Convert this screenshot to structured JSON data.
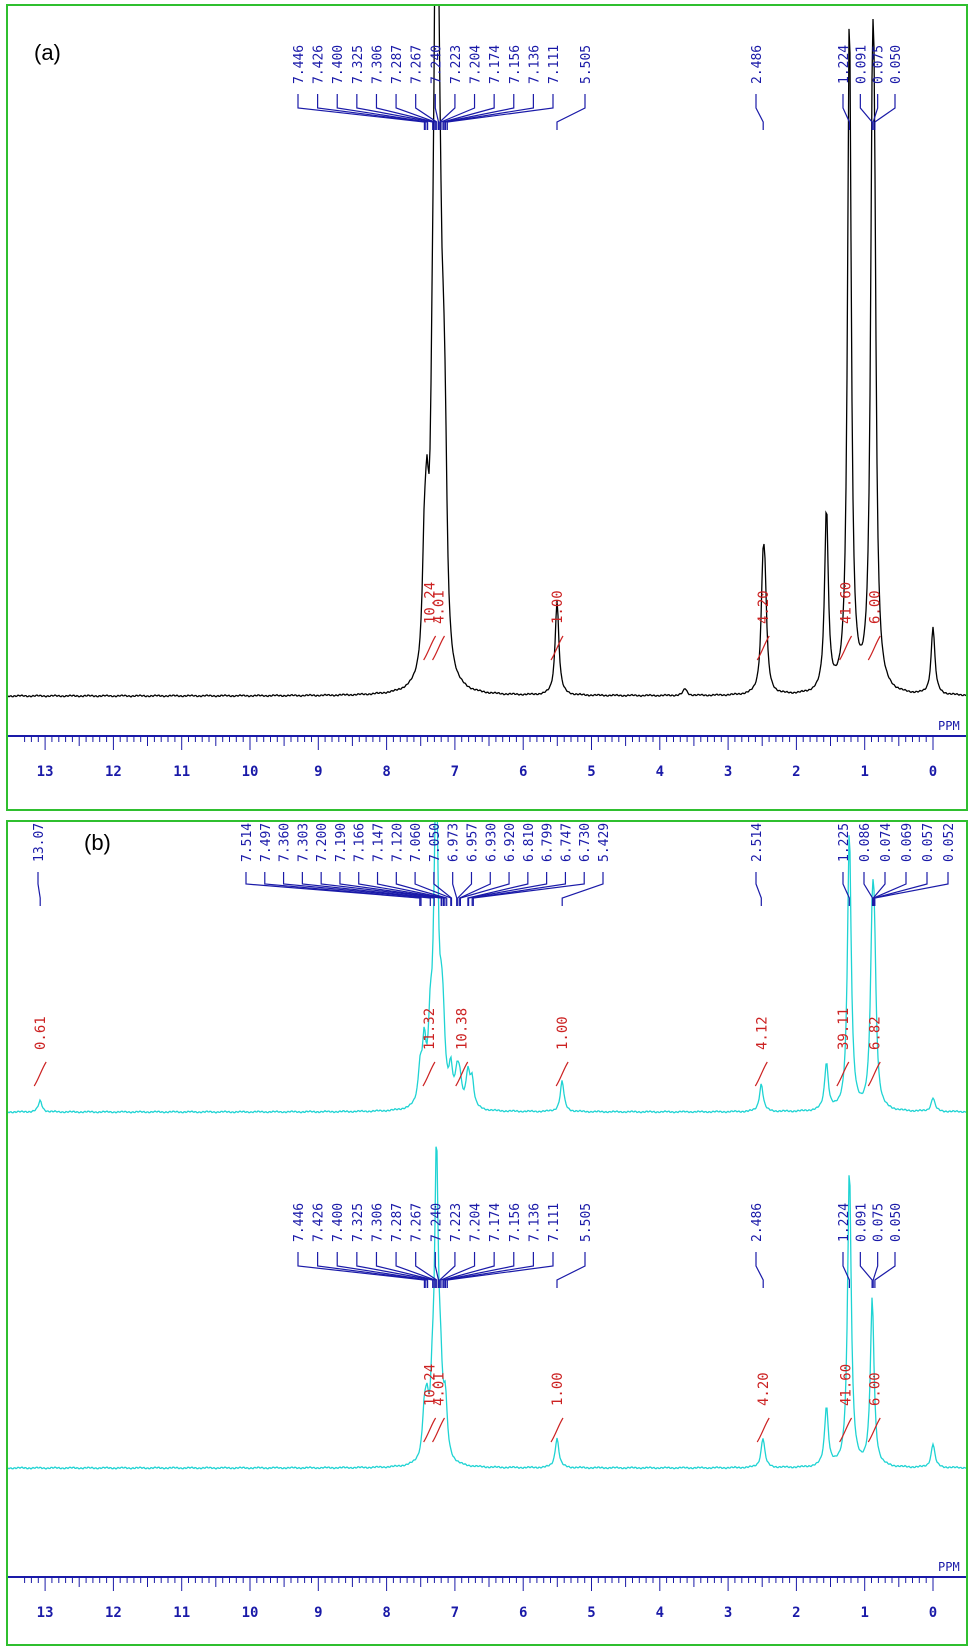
{
  "chart_data": [
    {
      "type": "line",
      "panel_label": "(a)",
      "x_unit": "PPM",
      "xlim": [
        13.3,
        0
      ],
      "x_ticks": [
        "13",
        "12",
        "11",
        "10",
        "9",
        "8",
        "7",
        "6",
        "5",
        "4",
        "3",
        "2",
        "1",
        "0"
      ],
      "series": [
        {
          "color": "#000000",
          "peaks": [
            {
              "x": 7.45,
              "h": 0.14
            },
            {
              "x": 7.41,
              "h": 0.18
            },
            {
              "x": 7.33,
              "h": 0.22
            },
            {
              "x": 7.3,
              "h": 0.2
            },
            {
              "x": 7.27,
              "h": 1.0
            },
            {
              "x": 7.24,
              "h": 0.3
            },
            {
              "x": 7.21,
              "h": 0.26
            },
            {
              "x": 7.17,
              "h": 0.22
            },
            {
              "x": 7.14,
              "h": 0.2
            },
            {
              "x": 5.505,
              "h": 0.14
            },
            {
              "x": 3.63,
              "h": 0.01
            },
            {
              "x": 2.49,
              "h": 0.15
            },
            {
              "x": 2.46,
              "h": 0.12
            },
            {
              "x": 1.56,
              "h": 0.27
            },
            {
              "x": 1.224,
              "h": 1.0
            },
            {
              "x": 0.89,
              "h": 0.62
            },
            {
              "x": 0.86,
              "h": 0.58
            },
            {
              "x": 0.0,
              "h": 0.1
            }
          ]
        }
      ],
      "peak_labels": [
        "7.446",
        "7.426",
        "7.400",
        "7.325",
        "7.306",
        "7.287",
        "7.267",
        "7.240",
        "7.223",
        "7.204",
        "7.174",
        "7.156",
        "7.136",
        "7.111",
        "5.505",
        "2.486",
        "1.224",
        "0.091",
        "0.075",
        "0.050"
      ],
      "integrals": [
        {
          "x": 7.37,
          "label": "10.24"
        },
        {
          "x": 7.24,
          "label": "4.01"
        },
        {
          "x": 5.505,
          "label": "1.00"
        },
        {
          "x": 2.486,
          "label": "4.20"
        },
        {
          "x": 1.28,
          "label": "41.60"
        },
        {
          "x": 0.86,
          "label": "6.00"
        }
      ]
    },
    {
      "type": "line",
      "panel_label": "(b)",
      "x_unit": "PPM",
      "xlim": [
        13.3,
        0
      ],
      "x_ticks": [
        "13",
        "12",
        "11",
        "10",
        "9",
        "8",
        "7",
        "6",
        "5",
        "4",
        "3",
        "2",
        "1",
        "0"
      ],
      "series": [
        {
          "color": "#1fd3d3",
          "peaks": [
            {
              "x": 13.072,
              "h": 0.04
            },
            {
              "x": 7.51,
              "h": 0.12
            },
            {
              "x": 7.45,
              "h": 0.2
            },
            {
              "x": 7.36,
              "h": 0.24
            },
            {
              "x": 7.3,
              "h": 0.27
            },
            {
              "x": 7.27,
              "h": 1.0
            },
            {
              "x": 7.2,
              "h": 0.22
            },
            {
              "x": 7.17,
              "h": 0.18
            },
            {
              "x": 7.06,
              "h": 0.12
            },
            {
              "x": 6.97,
              "h": 0.1
            },
            {
              "x": 6.93,
              "h": 0.09
            },
            {
              "x": 6.81,
              "h": 0.12
            },
            {
              "x": 6.75,
              "h": 0.1
            },
            {
              "x": 5.43,
              "h": 0.11
            },
            {
              "x": 2.514,
              "h": 0.1
            },
            {
              "x": 1.56,
              "h": 0.17
            },
            {
              "x": 1.225,
              "h": 1.0
            },
            {
              "x": 0.89,
              "h": 0.52
            },
            {
              "x": 0.86,
              "h": 0.48
            },
            {
              "x": 0.0,
              "h": 0.05
            }
          ]
        },
        {
          "color": "#1fd3d3",
          "peaks": [
            {
              "x": 7.45,
              "h": 0.13
            },
            {
              "x": 7.41,
              "h": 0.15
            },
            {
              "x": 7.33,
              "h": 0.18
            },
            {
              "x": 7.27,
              "h": 1.0
            },
            {
              "x": 7.21,
              "h": 0.22
            },
            {
              "x": 7.14,
              "h": 0.18
            },
            {
              "x": 5.505,
              "h": 0.1
            },
            {
              "x": 2.49,
              "h": 0.1
            },
            {
              "x": 1.56,
              "h": 0.2
            },
            {
              "x": 1.224,
              "h": 1.0
            },
            {
              "x": 0.89,
              "h": 0.56
            },
            {
              "x": 0.0,
              "h": 0.08
            }
          ]
        }
      ],
      "peak_labels_upper": [
        "13.072",
        "7.514",
        "7.497",
        "7.360",
        "7.303",
        "7.200",
        "7.190",
        "7.166",
        "7.147",
        "7.120",
        "7.060",
        "7.050",
        "6.973",
        "6.957",
        "6.930",
        "6.920",
        "6.810",
        "6.799",
        "6.747",
        "6.730",
        "5.429",
        "2.514",
        "1.225",
        "0.086",
        "0.074",
        "0.069",
        "0.057",
        "0.052"
      ],
      "integrals_upper": [
        {
          "x": 13.072,
          "label": "0.61"
        },
        {
          "x": 7.38,
          "label": "11.32"
        },
        {
          "x": 6.9,
          "label": "10.38"
        },
        {
          "x": 5.43,
          "label": "1.00"
        },
        {
          "x": 2.514,
          "label": "4.12"
        },
        {
          "x": 1.32,
          "label": "39.11"
        },
        {
          "x": 0.86,
          "label": "6.82"
        }
      ],
      "peak_labels_lower": [
        "7.446",
        "7.426",
        "7.400",
        "7.325",
        "7.306",
        "7.287",
        "7.267",
        "7.240",
        "7.223",
        "7.204",
        "7.174",
        "7.156",
        "7.136",
        "7.111",
        "5.505",
        "2.486",
        "1.224",
        "0.091",
        "0.075",
        "0.050"
      ],
      "integrals_lower": [
        {
          "x": 7.37,
          "label": "10.24"
        },
        {
          "x": 7.24,
          "label": "4.01"
        },
        {
          "x": 5.505,
          "label": "1.00"
        },
        {
          "x": 2.486,
          "label": "4.20"
        },
        {
          "x": 1.28,
          "label": "41.60"
        },
        {
          "x": 0.86,
          "label": "6.00"
        }
      ]
    }
  ]
}
